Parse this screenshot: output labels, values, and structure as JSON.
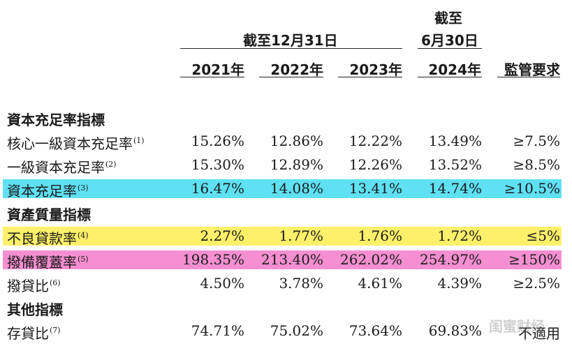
{
  "colors": {
    "cyan_highlight": "#5fe0f3",
    "yellow_highlight": "#fdf06a",
    "pink_highlight": "#f58fd1"
  },
  "header": {
    "group_label": "截至12月31日",
    "june_label_line1": "截至",
    "june_label_line2": "6月30日",
    "col_2021": "2021年",
    "col_2022": "2022年",
    "col_2023": "2023年",
    "col_2024": "2024年",
    "col_req": "監管要求"
  },
  "sections": {
    "capital": "資本充足率指標",
    "asset": "資產質量指標",
    "other": "其他指標"
  },
  "rows": [
    {
      "label": "核心一級資本充足率",
      "note": "(1)",
      "v2021": "15.26%",
      "v2022": "12.86%",
      "v2023": "12.22%",
      "v2024": "13.49%",
      "req": "≥7.5%"
    },
    {
      "label": "一級資本充足率",
      "note": "(2)",
      "v2021": "15.30%",
      "v2022": "12.89%",
      "v2023": "12.26%",
      "v2024": "13.52%",
      "req": "≥8.5%"
    },
    {
      "label": "資本充足率",
      "note": "(3)",
      "v2021": "16.47%",
      "v2022": "14.08%",
      "v2023": "13.41%",
      "v2024": "14.74%",
      "req": "≥10.5%"
    },
    {
      "label": "不良貸款率",
      "note": "(4)",
      "v2021": "2.27%",
      "v2022": "1.77%",
      "v2023": "1.76%",
      "v2024": "1.72%",
      "req": "≤5%"
    },
    {
      "label": "撥備覆蓋率",
      "note": "(5)",
      "v2021": "198.35%",
      "v2022": "213.40%",
      "v2023": "262.02%",
      "v2024": "254.97%",
      "req": "≥150%"
    },
    {
      "label": "撥貸比",
      "note": "(6)",
      "v2021": "4.50%",
      "v2022": "3.78%",
      "v2023": "4.61%",
      "v2024": "4.39%",
      "req": "≥2.5%"
    },
    {
      "label": "存貸比",
      "note": "(7)",
      "v2021": "74.71%",
      "v2022": "75.02%",
      "v2023": "73.64%",
      "v2024": "69.83%",
      "req": "不適用"
    }
  ],
  "watermark": "闺蜜财经"
}
